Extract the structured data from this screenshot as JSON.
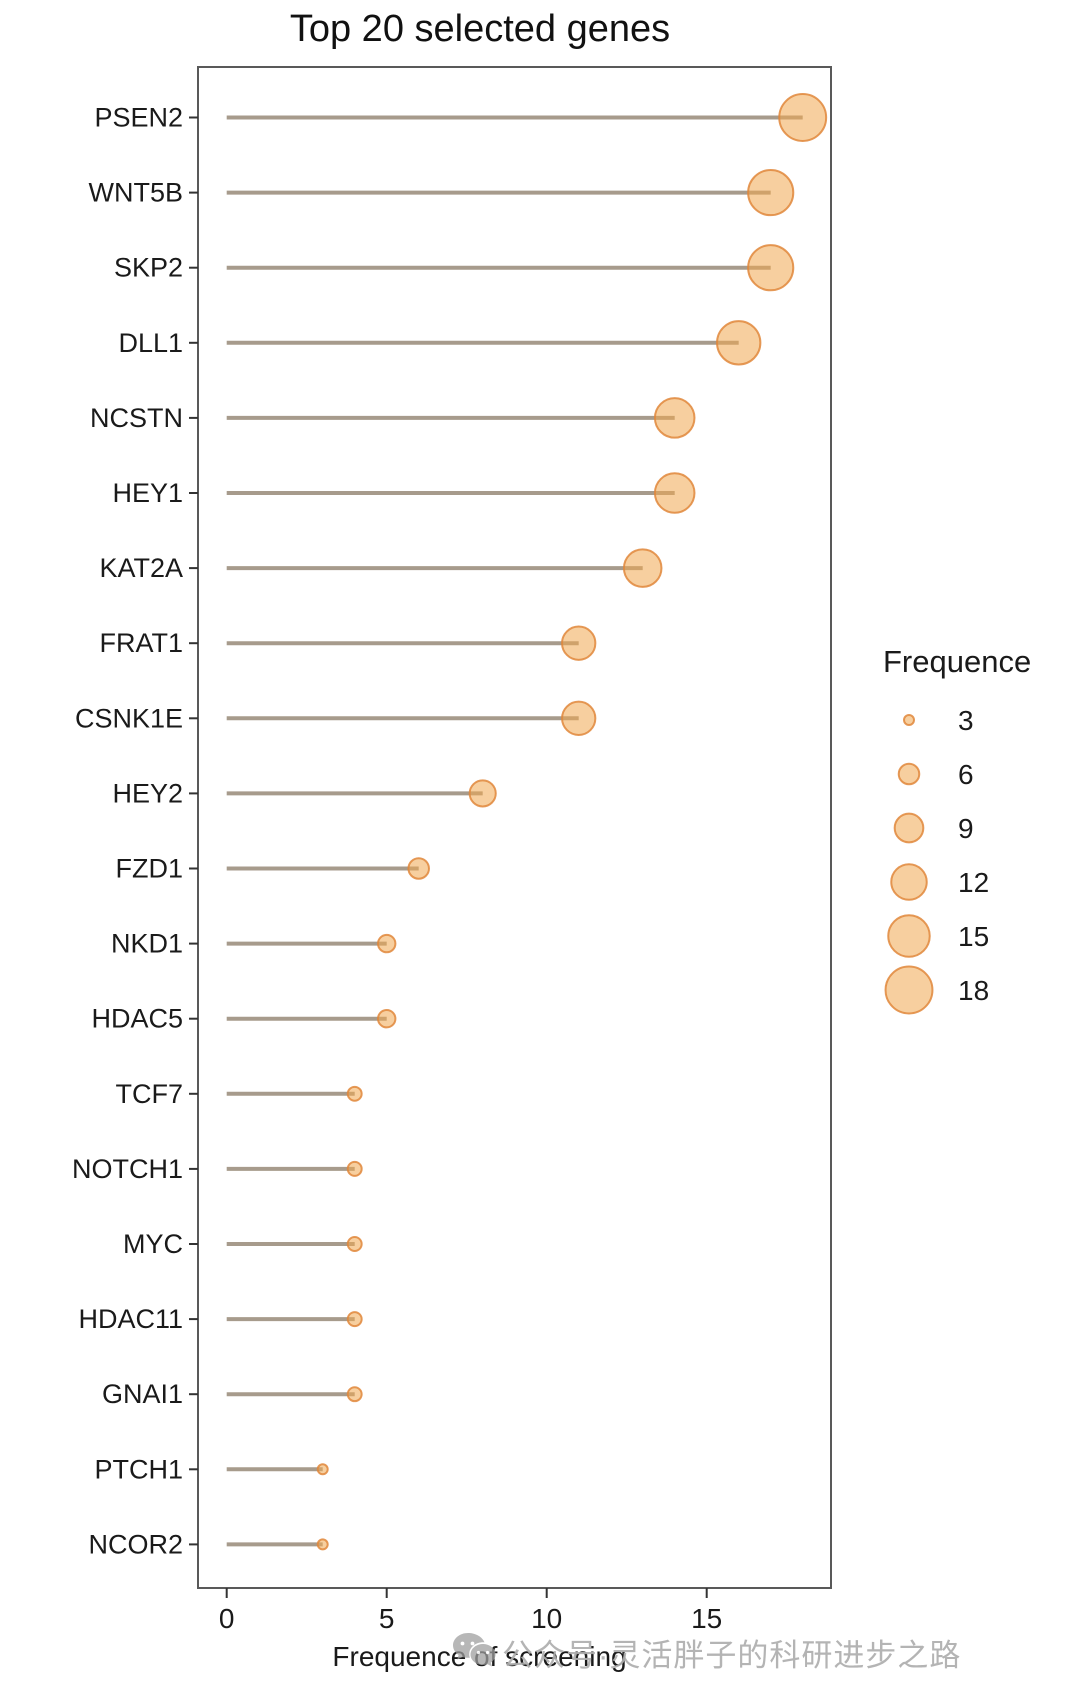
{
  "chart_data": {
    "type": "scatter",
    "variant": "lollipop",
    "title": "Top 20 selected genes",
    "xlabel": "Frequence of screening",
    "ylabel": "",
    "categories": [
      "PSEN2",
      "WNT5B",
      "SKP2",
      "DLL1",
      "NCSTN",
      "HEY1",
      "KAT2A",
      "FRAT1",
      "CSNK1E",
      "HEY2",
      "FZD1",
      "NKD1",
      "HDAC5",
      "TCF7",
      "NOTCH1",
      "MYC",
      "HDAC11",
      "GNAI1",
      "PTCH1",
      "NCOR2"
    ],
    "values": [
      18,
      17,
      17,
      16,
      14,
      14,
      13,
      11,
      11,
      8,
      6,
      5,
      5,
      4,
      4,
      4,
      4,
      4,
      3,
      3
    ],
    "xticks": [
      0,
      5,
      10,
      15
    ],
    "xlim": [
      -0.9,
      18.9
    ],
    "grid": false,
    "legend": {
      "title": "Frequence",
      "breaks": [
        3,
        6,
        9,
        12,
        15,
        18
      ],
      "position": "right"
    },
    "colors": {
      "dot_fill": "#F0A850",
      "dot_stroke": "#E0873B",
      "stem": "#A79B8C",
      "panel_border": "#595959",
      "tick": "#333333",
      "text": "#1A1A1A",
      "watermark": "#AEAEAE"
    }
  },
  "watermark": {
    "icon": "chat-bubbles-icon",
    "text": "公众号·灵活胖子的科研进步之路"
  }
}
